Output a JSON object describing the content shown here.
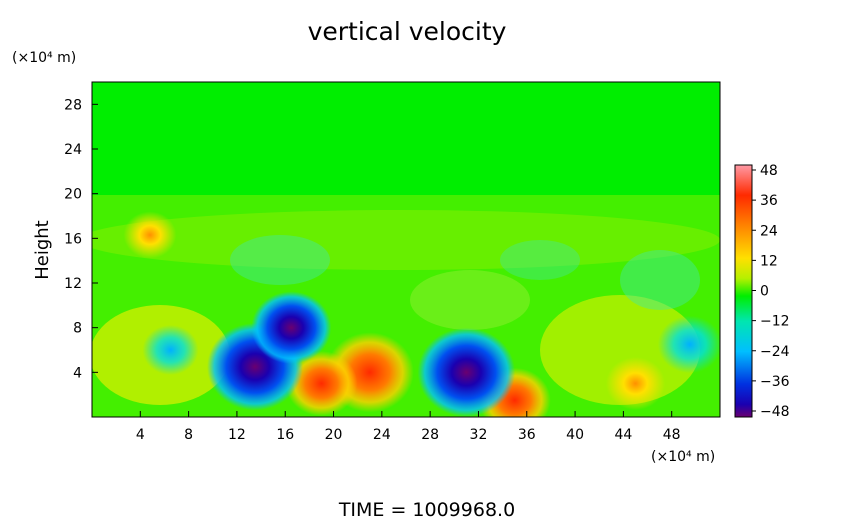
{
  "chart_data": {
    "type": "heatmap",
    "title": "vertical velocity",
    "xlabel": "",
    "ylabel": "Height",
    "x_unit": "(×10⁴ m)",
    "y_unit": "(×10⁴ m)",
    "xlim": [
      0,
      52
    ],
    "ylim": [
      0,
      30
    ],
    "x_ticks": [
      "4",
      "8",
      "12",
      "16",
      "20",
      "24",
      "28",
      "32",
      "36",
      "40",
      "44",
      "48"
    ],
    "y_ticks": [
      "4",
      "8",
      "12",
      "16",
      "20",
      "24",
      "28"
    ],
    "colorbar": {
      "range": [
        -48,
        48
      ],
      "tick_labels": [
        "48",
        "36",
        "24",
        "12",
        "0",
        "−12",
        "−24",
        "−36",
        "−48"
      ],
      "colors": [
        "#ff9aa6",
        "#ff2a00",
        "#ff8a00",
        "#ffe000",
        "#b6f000",
        "#00ee00",
        "#00e6b0",
        "#00bfff",
        "#0030e0",
        "#1a00b0",
        "#6a0070"
      ]
    },
    "features": [
      {
        "kind": "updraft",
        "x": 23,
        "y": 4,
        "peak": 40
      },
      {
        "kind": "updraft",
        "x": 19,
        "y": 3,
        "peak": 30
      },
      {
        "kind": "updraft",
        "x": 35,
        "y": 1.5,
        "peak": 30
      },
      {
        "kind": "updraft",
        "x": 4.8,
        "y": 16.3,
        "peak": 18
      },
      {
        "kind": "updraft",
        "x": 45,
        "y": 3,
        "peak": 22
      },
      {
        "kind": "downdraft",
        "x": 13.5,
        "y": 4.5,
        "peak": -45
      },
      {
        "kind": "downdraft",
        "x": 16.5,
        "y": 8,
        "peak": -35
      },
      {
        "kind": "downdraft",
        "x": 31,
        "y": 4,
        "peak": -46
      },
      {
        "kind": "downdraft",
        "x": 6.5,
        "y": 6,
        "peak": -20
      },
      {
        "kind": "downdraft",
        "x": 49.5,
        "y": 6.5,
        "peak": -25
      }
    ],
    "background": {
      "above_y": 19,
      "value": 0,
      "color": "#00ee00"
    }
  },
  "footer": {
    "time_label": "TIME",
    "time_value": "1009968.0"
  }
}
